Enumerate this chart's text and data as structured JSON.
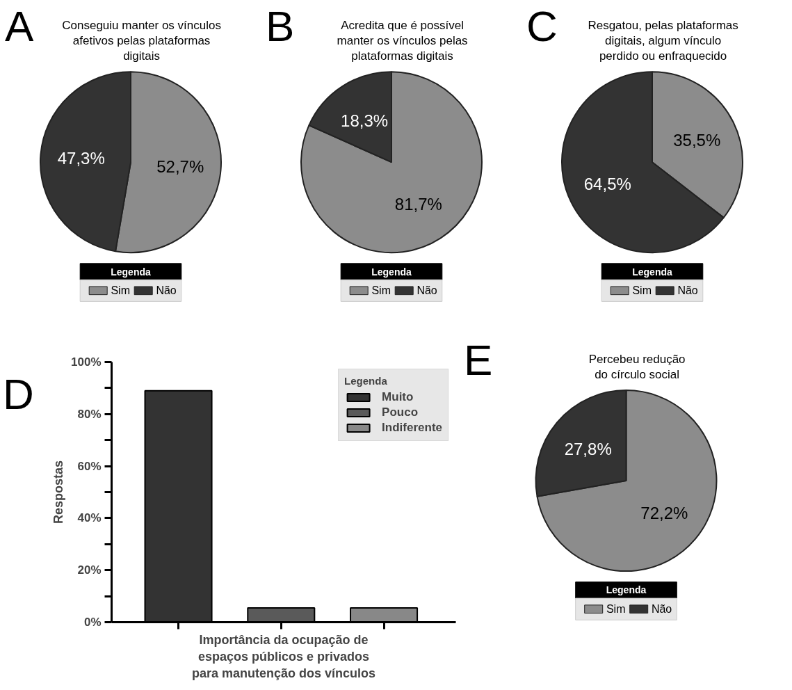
{
  "chart_data": [
    {
      "type": "pie",
      "annotations": [
        "A"
      ],
      "title": "Conseguiu manter os vínculos afetivos pelas plataformas digitais",
      "categories": [
        "Sim",
        "Não"
      ],
      "values": [
        52.7,
        47.3
      ],
      "value_labels": [
        "52,7%",
        "47,3%"
      ],
      "colors": [
        "#8c8c8c",
        "#333333"
      ],
      "legend_title": "Legenda",
      "legend": "bottom"
    },
    {
      "type": "pie",
      "annotations": [
        "B"
      ],
      "title": "Acredita que é possível manter os vínculos pelas plataformas digitais",
      "categories": [
        "Sim",
        "Não"
      ],
      "values": [
        81.7,
        18.3
      ],
      "value_labels": [
        "81,7%",
        "18,3%"
      ],
      "colors": [
        "#8c8c8c",
        "#333333"
      ],
      "legend_title": "Legenda",
      "legend": "bottom"
    },
    {
      "type": "pie",
      "annotations": [
        "C"
      ],
      "title": "Resgatou, pelas plataformas digitais, algum vínculo perdido ou enfraquecido",
      "categories": [
        "Sim",
        "Não"
      ],
      "values": [
        35.5,
        64.5
      ],
      "value_labels": [
        "35,5%",
        "64,5%"
      ],
      "colors": [
        "#8c8c8c",
        "#333333"
      ],
      "legend_title": "Legenda",
      "legend": "bottom"
    },
    {
      "type": "bar",
      "annotations": [
        "D"
      ],
      "xlabel": "Importância da ocupação de espaços públicos e privados para manutenção dos vínculos",
      "ylabel": "Respostas",
      "categories": [
        null,
        null,
        null
      ],
      "series": [
        {
          "name": "Muito",
          "color": "#333333",
          "values": [
            89,
            null,
            null
          ]
        },
        {
          "name": "Pouco",
          "color": "#5a5a5a",
          "values": [
            null,
            5.5,
            null
          ]
        },
        {
          "name": "Indiferente",
          "color": "#888888",
          "values": [
            null,
            null,
            5.5
          ]
        }
      ],
      "ylim": [
        0,
        100
      ],
      "yticks": [
        {
          "value": 0,
          "label": "0%"
        },
        {
          "value": 10,
          "label": null
        },
        {
          "value": 20,
          "label": "20%"
        },
        {
          "value": 30,
          "label": null
        },
        {
          "value": 40,
          "label": "40%"
        },
        {
          "value": 50,
          "label": null
        },
        {
          "value": 60,
          "label": "60%"
        },
        {
          "value": 70,
          "label": null
        },
        {
          "value": 80,
          "label": "80%"
        },
        {
          "value": 90,
          "label": null
        },
        {
          "value": 100,
          "label": "100%"
        }
      ],
      "legend_title": "Legenda",
      "legend": "top right",
      "grid": false
    },
    {
      "type": "pie",
      "annotations": [
        "E"
      ],
      "title": "Percebeu redução do círculo social",
      "categories": [
        "Sim",
        "Não"
      ],
      "values": [
        72.2,
        27.8
      ],
      "value_labels": [
        "72,2%",
        "27,8%"
      ],
      "colors": [
        "#8c8c8c",
        "#333333"
      ],
      "legend_title": "Legenda",
      "legend": "bottom"
    }
  ]
}
